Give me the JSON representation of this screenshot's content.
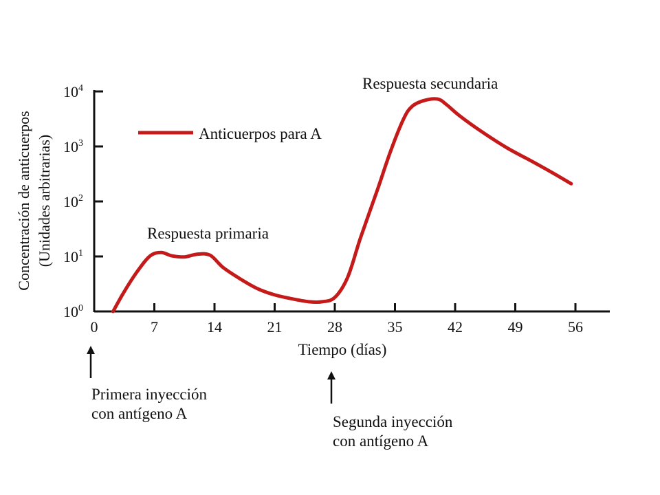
{
  "chart_data": {
    "type": "line",
    "title": "",
    "xlabel": "Tiempo (días)",
    "ylabel": [
      "Concentración de anticuerpos",
      "(Unidades arbitrarias)"
    ],
    "y_scale": "log",
    "xlim": [
      0,
      60
    ],
    "ylim": [
      1,
      10000
    ],
    "x_ticks": [
      0,
      7,
      14,
      21,
      28,
      35,
      42,
      49,
      56
    ],
    "y_ticks": [
      {
        "value": 1,
        "base": "10",
        "exp": "0"
      },
      {
        "value": 10,
        "base": "10",
        "exp": "1"
      },
      {
        "value": 100,
        "base": "10",
        "exp": "2"
      },
      {
        "value": 1000,
        "base": "10",
        "exp": "3"
      },
      {
        "value": 10000,
        "base": "10",
        "exp": "4"
      }
    ],
    "grid": false,
    "legend_position": "top-left",
    "series": [
      {
        "name": "Anticuerpos para A",
        "color": "#c41a1a",
        "x": [
          2.2,
          3.5,
          5,
          6.5,
          7.8,
          9,
          10.5,
          12,
          13.5,
          15,
          17,
          19,
          21,
          23,
          25,
          26.5,
          28,
          29.5,
          31,
          33,
          34.5,
          36,
          37,
          38.5,
          40,
          41,
          42.5,
          45,
          48,
          51,
          53.5,
          55.5
        ],
        "y": [
          1,
          2.3,
          5.3,
          10.2,
          11.8,
          10.3,
          9.8,
          11,
          10.5,
          6.3,
          3.9,
          2.6,
          2,
          1.7,
          1.5,
          1.5,
          1.8,
          4.2,
          22,
          170,
          830,
          3150,
          5370,
          6920,
          7240,
          5750,
          3630,
          1900,
          950,
          530,
          320,
          210
        ]
      }
    ],
    "annotations": [
      {
        "text": "Respuesta primaria"
      },
      {
        "text": "Respuesta secundaria"
      }
    ],
    "injections": [
      {
        "day": 0,
        "lines": [
          "Primera inyección",
          "con antígeno A"
        ]
      },
      {
        "day": 28,
        "lines": [
          "Segunda inyección",
          "con antígeno A"
        ]
      }
    ]
  }
}
